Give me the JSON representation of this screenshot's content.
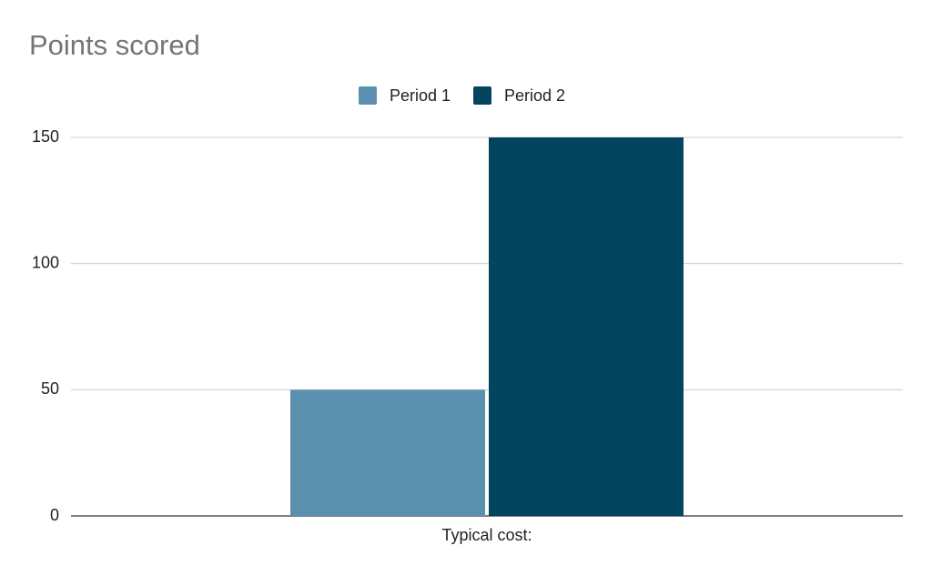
{
  "chart_data": {
    "type": "bar",
    "title": "Points scored",
    "categories": [
      "Typical cost:"
    ],
    "series": [
      {
        "name": "Period 1",
        "color": "#5b91ae",
        "values": [
          50
        ]
      },
      {
        "name": "Period 2",
        "color": "#03445f",
        "values": [
          150
        ]
      }
    ],
    "ylim": [
      0,
      150
    ],
    "yticks": [
      0,
      50,
      100,
      150
    ],
    "grid": true,
    "legend": "top"
  }
}
